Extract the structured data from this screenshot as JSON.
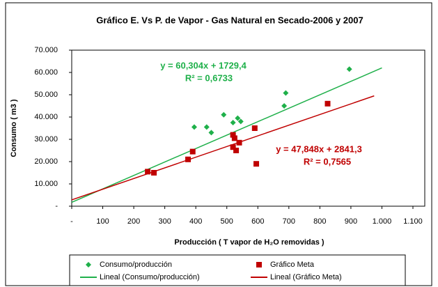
{
  "chart_data": {
    "type": "scatter",
    "title": "Gráfico E. Vs P. de Vapor - Gas Natural en Secado-2006 y 2007",
    "x_label": "Producción ( T vapor de H₂O removidas )",
    "y_label": "Consumo ( m3 )",
    "xlim": [
      0,
      1100
    ],
    "xticks": [
      {
        "value": 0,
        "label": "-"
      },
      100,
      200,
      300,
      400,
      500,
      600,
      700,
      800,
      900,
      {
        "value": 1000,
        "label": "1.000"
      },
      {
        "value": 1100,
        "label": "1.100"
      }
    ],
    "ylim": [
      0,
      70000
    ],
    "yticks": [
      {
        "value": 0,
        "label": "-"
      },
      {
        "value": 10000,
        "label": "10.000"
      },
      {
        "value": 20000,
        "label": "20.000"
      },
      {
        "value": 30000,
        "label": "30.000"
      },
      {
        "value": 40000,
        "label": "40.000"
      },
      {
        "value": 50000,
        "label": "50.000"
      },
      {
        "value": 60000,
        "label": "60.000"
      },
      {
        "value": 70000,
        "label": "70.000"
      }
    ],
    "series": [
      {
        "name": "Consumo/producción",
        "color": "#1fb04a",
        "marker": "diamond",
        "x": [
          395,
          435,
          450,
          490,
          520,
          535,
          545,
          685,
          690,
          895
        ],
        "values": [
          35500,
          35500,
          33000,
          41000,
          37500,
          39500,
          38000,
          45000,
          50800,
          61500
        ],
        "trendline": {
          "name": "Lineal (Consumo/producción)",
          "slope": 60.304,
          "intercept": 1729.4,
          "x": [
            0,
            1000
          ],
          "equation": "y = 60,304x + 1729,4",
          "r2": "R² = 0,6733"
        }
      },
      {
        "name": "Gráfico Meta",
        "color": "#c00000",
        "marker": "square",
        "x": [
          245,
          265,
          375,
          390,
          520,
          520,
          525,
          530,
          540,
          590,
          595,
          825
        ],
        "values": [
          15500,
          15000,
          21000,
          24500,
          32000,
          26500,
          30500,
          25000,
          28500,
          35000,
          19000,
          46000
        ],
        "trendline": {
          "name": "Lineal (Gráfico Meta)",
          "slope": 47.848,
          "intercept": 2841.3,
          "x": [
            0,
            975
          ],
          "equation": "y = 47,848x + 2841,3",
          "r2": "R² = 0,7565"
        }
      }
    ]
  }
}
